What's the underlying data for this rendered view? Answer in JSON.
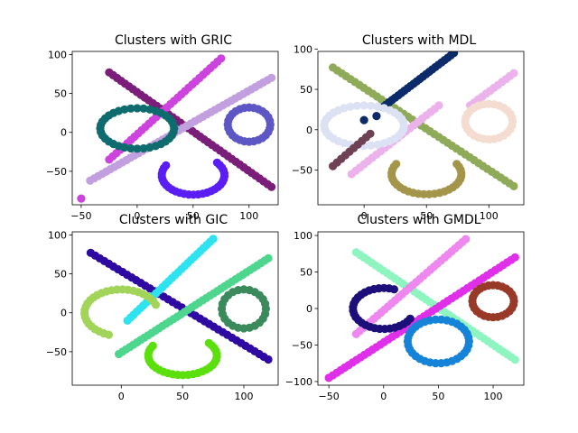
{
  "chart_data": [
    {
      "type": "scatter",
      "title": "Clusters with GRIC",
      "xlabel": "",
      "ylabel": "",
      "xlim": [
        -58,
        126
      ],
      "ylim": [
        -93,
        104
      ],
      "xticks": [
        -50,
        0,
        50,
        100
      ],
      "xtick_labels": [
        "−50",
        "0",
        "50",
        "100"
      ],
      "yticks": [
        -50,
        0,
        50,
        100
      ],
      "ytick_labels": [
        "−50",
        "0",
        "50",
        "100"
      ],
      "series": [
        {
          "color": "#7b1e7a",
          "shape": "line",
          "from": [
            -25,
            77
          ],
          "to": [
            120,
            -70
          ],
          "n": 42
        },
        {
          "color": "#cc44dd",
          "shape": "line",
          "from": [
            -25,
            -35
          ],
          "to": [
            75,
            95
          ],
          "n": 32
        },
        {
          "color": "#c2a0e0",
          "shape": "line",
          "from": [
            -42,
            -62
          ],
          "to": [
            120,
            70
          ],
          "n": 46
        },
        {
          "color": "#cc44dd",
          "shape": "points",
          "points": [
            [
              -50,
              -85
            ]
          ]
        },
        {
          "color": "#0e6b6e",
          "shape": "ring",
          "center": [
            0,
            5
          ],
          "rx": 33,
          "ry": 26,
          "n": 36
        },
        {
          "color": "#5c57c4",
          "shape": "ring",
          "center": [
            100,
            10
          ],
          "rx": 19,
          "ry": 22,
          "n": 28
        },
        {
          "color": "#5a1ef5",
          "shape": "arc",
          "center": [
            50,
            -55
          ],
          "rx": 28,
          "ry": 25,
          "a0": 150,
          "a1": 400,
          "n": 30
        }
      ]
    },
    {
      "type": "scatter",
      "title": "Clusters with MDL",
      "xlabel": "",
      "ylabel": "",
      "xlim": [
        -37,
        128
      ],
      "ylim": [
        -93,
        97
      ],
      "xticks": [
        0,
        50,
        100
      ],
      "xtick_labels": [
        "0",
        "50",
        "100"
      ],
      "yticks": [
        -50,
        0,
        50,
        100
      ],
      "ytick_labels": [
        "−50",
        "0",
        "50",
        "100"
      ],
      "series": [
        {
          "color": "#8fab5a",
          "shape": "line",
          "from": [
            -25,
            77
          ],
          "to": [
            120,
            -70
          ],
          "n": 42
        },
        {
          "color": "#0c2b6b",
          "shape": "line",
          "from": [
            15,
            28
          ],
          "to": [
            72,
            95
          ],
          "n": 24
        },
        {
          "color": "#ecb2ec",
          "shape": "line",
          "from": [
            -10,
            -55
          ],
          "to": [
            60,
            30
          ],
          "n": 22
        },
        {
          "color": "#ecb2ec",
          "shape": "line",
          "from": [
            85,
            30
          ],
          "to": [
            120,
            70
          ],
          "n": 12
        },
        {
          "color": "#dce1f4",
          "shape": "ring",
          "center": [
            0,
            5
          ],
          "rx": 32,
          "ry": 25,
          "n": 36
        },
        {
          "color": "#6e4154",
          "shape": "line",
          "from": [
            -25,
            -45
          ],
          "to": [
            5,
            -5
          ],
          "n": 10
        },
        {
          "color": "#f4dcd0",
          "shape": "ring",
          "center": [
            100,
            10
          ],
          "rx": 19,
          "ry": 22,
          "n": 28
        },
        {
          "color": "#a3954a",
          "shape": "arc",
          "center": [
            50,
            -55
          ],
          "rx": 28,
          "ry": 25,
          "a0": 150,
          "a1": 390,
          "n": 28
        },
        {
          "color": "#0c2b6b",
          "shape": "points",
          "points": [
            [
              0,
              12
            ],
            [
              10,
              17
            ]
          ]
        }
      ]
    },
    {
      "type": "scatter",
      "title": "Clusters with GIC",
      "xlabel": "",
      "ylabel": "",
      "xlim": [
        -40,
        128
      ],
      "ylim": [
        -93,
        104
      ],
      "xticks": [
        0,
        50,
        100
      ],
      "xtick_labels": [
        "0",
        "50",
        "100"
      ],
      "yticks": [
        -50,
        0,
        50,
        100
      ],
      "ytick_labels": [
        "−50",
        "0",
        "50",
        "100"
      ],
      "series": [
        {
          "color": "#2e0aa3",
          "shape": "line",
          "from": [
            -25,
            77
          ],
          "to": [
            120,
            -60
          ],
          "n": 40
        },
        {
          "color": "#2ee3ef",
          "shape": "line",
          "from": [
            5,
            -10
          ],
          "to": [
            75,
            95
          ],
          "n": 28
        },
        {
          "color": "#4ed68e",
          "shape": "line",
          "from": [
            -2,
            -53
          ],
          "to": [
            120,
            70
          ],
          "n": 42
        },
        {
          "color": "#a2d45a",
          "shape": "arc",
          "center": [
            0,
            0
          ],
          "rx": 30,
          "ry": 30,
          "a0": 20,
          "a1": 250,
          "n": 28
        },
        {
          "color": "#3a8a5c",
          "shape": "ring",
          "center": [
            100,
            5
          ],
          "rx": 18,
          "ry": 25,
          "n": 24
        },
        {
          "color": "#5be00e",
          "shape": "arc",
          "center": [
            50,
            -55
          ],
          "rx": 28,
          "ry": 25,
          "a0": 150,
          "a1": 400,
          "n": 30
        }
      ]
    },
    {
      "type": "scatter",
      "title": "Clusters with GMDL",
      "xlabel": "",
      "ylabel": "",
      "xlim": [
        -60,
        128
      ],
      "ylim": [
        -105,
        105
      ],
      "xticks": [
        -50,
        0,
        50,
        100
      ],
      "xtick_labels": [
        "−50",
        "0",
        "50",
        "100"
      ],
      "yticks": [
        -100,
        -50,
        0,
        50,
        100
      ],
      "ytick_labels": [
        "−100",
        "−50",
        "0",
        "50",
        "100"
      ],
      "series": [
        {
          "color": "#8ef5c0",
          "shape": "line",
          "from": [
            -25,
            77
          ],
          "to": [
            120,
            -70
          ],
          "n": 42
        },
        {
          "color": "#ee88ee",
          "shape": "line",
          "from": [
            -25,
            -35
          ],
          "to": [
            75,
            95
          ],
          "n": 32
        },
        {
          "color": "#e02fe8",
          "shape": "line",
          "from": [
            -50,
            -95
          ],
          "to": [
            120,
            70
          ],
          "n": 48
        },
        {
          "color": "#1c0f7a",
          "shape": "arc",
          "center": [
            0,
            0
          ],
          "rx": 28,
          "ry": 28,
          "a0": 70,
          "a1": 330,
          "n": 28
        },
        {
          "color": "#993a28",
          "shape": "ring",
          "center": [
            100,
            10
          ],
          "rx": 19,
          "ry": 22,
          "n": 28
        },
        {
          "color": "#1584d8",
          "shape": "ring",
          "center": [
            50,
            -45
          ],
          "rx": 28,
          "ry": 30,
          "n": 34
        }
      ]
    }
  ],
  "layout": {
    "background": "#ffffff"
  }
}
